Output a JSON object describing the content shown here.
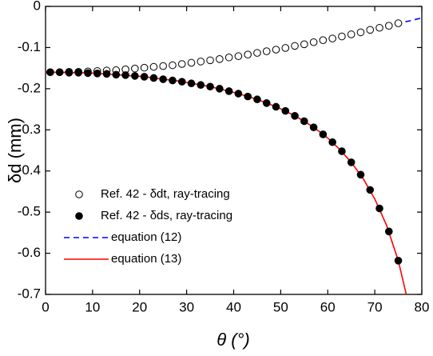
{
  "chart_data": {
    "type": "scatter-line",
    "xlabel": "θ (°)",
    "ylabel": "δd (mm)",
    "xlim": [
      0,
      80
    ],
    "xticks": [
      0,
      10,
      20,
      30,
      40,
      50,
      60,
      70,
      80
    ],
    "ylim": [
      -0.7,
      0
    ],
    "yticks": [
      0,
      -0.1,
      -0.2,
      -0.3,
      -0.4,
      -0.5,
      -0.6,
      -0.7
    ],
    "series": [
      {
        "name": "Ref. 42 - δdt, ray-tracing",
        "mode": "markers",
        "color": "#000000",
        "fill": "none",
        "x": [
          1,
          3,
          5,
          7,
          9,
          11,
          13,
          15,
          17,
          19,
          21,
          23,
          25,
          27,
          29,
          31,
          33,
          35,
          37,
          39,
          41,
          43,
          45,
          47,
          49,
          51,
          53,
          55,
          57,
          59,
          61,
          63,
          65,
          67,
          69,
          71,
          73,
          75
        ],
        "values": [
          -0.16,
          -0.16,
          -0.159,
          -0.159,
          -0.158,
          -0.157,
          -0.156,
          -0.155,
          -0.153,
          -0.151,
          -0.149,
          -0.147,
          -0.145,
          -0.143,
          -0.14,
          -0.137,
          -0.134,
          -0.131,
          -0.128,
          -0.124,
          -0.121,
          -0.117,
          -0.113,
          -0.109,
          -0.105,
          -0.101,
          -0.096,
          -0.092,
          -0.087,
          -0.082,
          -0.078,
          -0.073,
          -0.068,
          -0.063,
          -0.057,
          -0.052,
          -0.047,
          -0.041
        ]
      },
      {
        "name": "Ref. 42 - δds, ray-tracing",
        "mode": "markers",
        "color": "#000000",
        "fill": "#000000",
        "x": [
          1,
          3,
          5,
          7,
          9,
          11,
          13,
          15,
          17,
          19,
          21,
          23,
          25,
          27,
          29,
          31,
          33,
          35,
          37,
          39,
          41,
          43,
          45,
          47,
          49,
          51,
          53,
          55,
          57,
          59,
          61,
          63,
          65,
          67,
          69,
          71,
          73,
          75
        ],
        "values": [
          -0.16,
          -0.16,
          -0.161,
          -0.161,
          -0.162,
          -0.163,
          -0.164,
          -0.166,
          -0.167,
          -0.169,
          -0.171,
          -0.174,
          -0.177,
          -0.18,
          -0.183,
          -0.187,
          -0.191,
          -0.195,
          -0.2,
          -0.206,
          -0.212,
          -0.219,
          -0.226,
          -0.235,
          -0.244,
          -0.254,
          -0.266,
          -0.279,
          -0.294,
          -0.311,
          -0.33,
          -0.352,
          -0.379,
          -0.409,
          -0.446,
          -0.491,
          -0.547,
          -0.618
        ]
      },
      {
        "name": "equation (12)",
        "mode": "line",
        "color": "#0000ff",
        "dash": true,
        "x": [
          0,
          2.5,
          5,
          7.5,
          10,
          12.5,
          15,
          17.5,
          20,
          22.5,
          25,
          27.5,
          30,
          32.5,
          35,
          37.5,
          40,
          42.5,
          45,
          47.5,
          50,
          52.5,
          55,
          57.5,
          60,
          62.5,
          65,
          67.5,
          70,
          72.5,
          75,
          77.5,
          80
        ],
        "values": [
          -0.16,
          -0.16,
          -0.159,
          -0.159,
          -0.158,
          -0.156,
          -0.155,
          -0.153,
          -0.15,
          -0.148,
          -0.145,
          -0.142,
          -0.139,
          -0.135,
          -0.131,
          -0.127,
          -0.123,
          -0.118,
          -0.113,
          -0.108,
          -0.103,
          -0.097,
          -0.092,
          -0.086,
          -0.08,
          -0.074,
          -0.068,
          -0.061,
          -0.055,
          -0.048,
          -0.041,
          -0.035,
          -0.028
        ]
      },
      {
        "name": "equation (13)",
        "mode": "line",
        "color": "#ff0000",
        "dash": false,
        "x": [
          0,
          2.5,
          5,
          7.5,
          10,
          12.5,
          15,
          17.5,
          20,
          22.5,
          25,
          27.5,
          30,
          32.5,
          35,
          37.5,
          40,
          42.5,
          45,
          47.5,
          50,
          52.5,
          55,
          57.5,
          60,
          62.5,
          65,
          67.5,
          70,
          72.5,
          75,
          77.5
        ],
        "values": [
          -0.16,
          -0.16,
          -0.161,
          -0.161,
          -0.162,
          -0.164,
          -0.166,
          -0.168,
          -0.17,
          -0.173,
          -0.177,
          -0.18,
          -0.185,
          -0.19,
          -0.195,
          -0.202,
          -0.209,
          -0.217,
          -0.226,
          -0.237,
          -0.249,
          -0.263,
          -0.279,
          -0.298,
          -0.32,
          -0.347,
          -0.379,
          -0.418,
          -0.468,
          -0.532,
          -0.618,
          -0.739
        ]
      }
    ]
  }
}
